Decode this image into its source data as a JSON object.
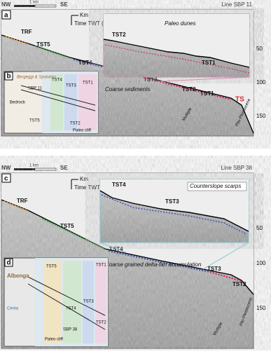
{
  "panels": [
    {
      "label": "a",
      "left": "NW",
      "scale": "1 km",
      "right": "SE",
      "line": "Line SBP 11",
      "axis_unit": "Km",
      "axis_title": "Time TWT (ms)",
      "units": [
        "TRF",
        "TST5",
        "TST4",
        "TST3",
        "TST2",
        "TST1",
        "TS"
      ],
      "inset_units": [
        "TST2",
        "TST1"
      ],
      "annotations": [
        "Paleo dunes",
        "Coarse sediments",
        "Plio-Pleistocene",
        "Multiple"
      ],
      "ticks": [
        50,
        100,
        150
      ],
      "map": {
        "label": "b",
        "texts": [
          "Bergeggi & Spotorno",
          "Bedrock",
          "TST4",
          "TST3",
          "TST1",
          "TST5",
          "TST2",
          "SBP 11",
          "Paleo cliff"
        ]
      }
    },
    {
      "label": "c",
      "left": "NW",
      "scale": "1 km",
      "right": "SE",
      "line": "Line SBP 38",
      "axis_unit": "Km",
      "axis_title": "Time TWT (ms)",
      "units": [
        "TRF",
        "TST5",
        "TST4",
        "TST3",
        "TST2"
      ],
      "inset_units": [
        "TST4",
        "TST3"
      ],
      "annotations": [
        "Counterslope scarps",
        "Coarse grained delta-fan accumulation",
        "Plio-Pleistocene",
        "Multiple"
      ],
      "ticks": [
        50,
        100,
        150
      ],
      "map": {
        "label": "d",
        "texts": [
          "Albenga",
          "TST5",
          "TST4",
          "TST3",
          "TST2",
          "TST1",
          "SBP 38",
          "Paleo cliff",
          "Centa"
        ]
      }
    }
  ]
}
